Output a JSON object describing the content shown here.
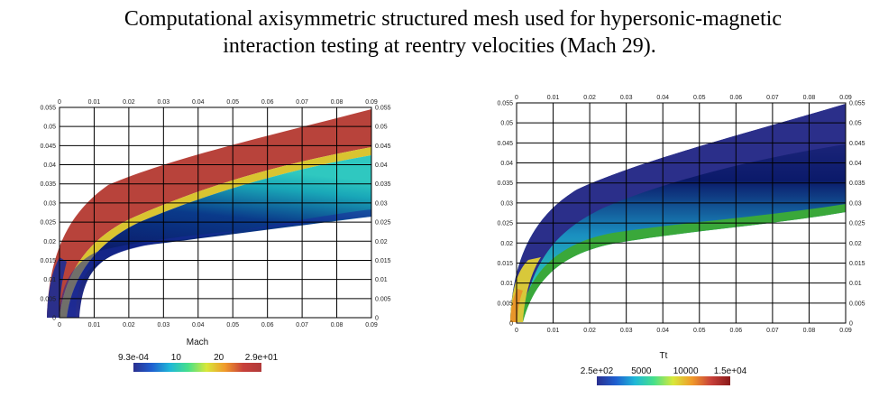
{
  "caption": {
    "line1": "Computational axisymmetric structured mesh used for hypersonic-magnetic",
    "line2": "interaction testing at reentry velocities (Mach 29)."
  },
  "panels": [
    {
      "name": "mach",
      "x_ticks": [
        "0",
        "0.01",
        "0.02",
        "0.03",
        "0.04",
        "0.05",
        "0.06",
        "0.07",
        "0.08",
        "0.09"
      ],
      "y_ticks": [
        "0",
        "0.005",
        "0.01",
        "0.015",
        "0.02",
        "0.025",
        "0.03",
        "0.035",
        "0.04",
        "0.045",
        "0.05",
        "0.055"
      ],
      "colorbar": {
        "title": "Mach",
        "labels": [
          "9.3e-04",
          "10",
          "20",
          "2.9e+01"
        ],
        "stops": [
          "#2a2f8f",
          "#1f5fd0",
          "#1fb8d8",
          "#47e08a",
          "#d8e83a",
          "#f09a2a",
          "#c8403a",
          "#b03a3a"
        ]
      }
    },
    {
      "name": "tt",
      "x_ticks": [
        "0",
        "0.01",
        "0.02",
        "0.03",
        "0.04",
        "0.05",
        "0.06",
        "0.07",
        "0.08",
        "0.09"
      ],
      "y_ticks": [
        "0",
        "0.005",
        "0.01",
        "0.015",
        "0.02",
        "0.025",
        "0.03",
        "0.035",
        "0.04",
        "0.045",
        "0.05",
        "0.055"
      ],
      "colorbar": {
        "title": "Tt",
        "labels": [
          "2.5e+02",
          "5000",
          "10000",
          "1.5e+04"
        ],
        "stops": [
          "#2a2f8f",
          "#1f5fd0",
          "#1fb8d8",
          "#47e08a",
          "#d8e83a",
          "#f09a2a",
          "#c8403a",
          "#8a1a1a"
        ]
      }
    }
  ],
  "colors": {
    "shock_red": "#b8433b",
    "deep_blue": "#2b2f8a",
    "teal": "#1fa7b0",
    "green": "#3fbf3f",
    "orange": "#e8962a"
  }
}
